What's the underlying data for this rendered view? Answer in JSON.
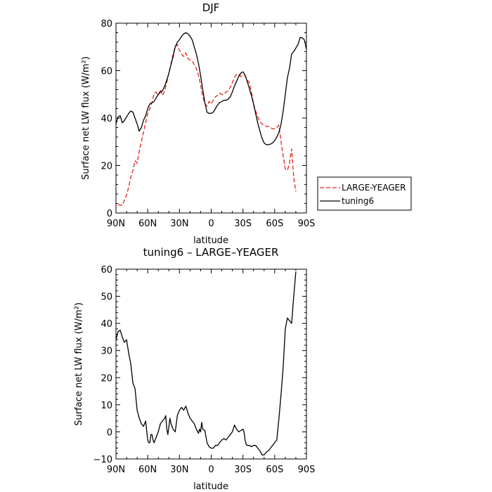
{
  "chart_data": [
    {
      "type": "line",
      "title": "DJF",
      "xlabel": "latitude",
      "ylabel": "Surface net LW flux (W/m²)",
      "xlim": [
        -90,
        90
      ],
      "ylim": [
        0,
        80
      ],
      "x_ticks": [
        -90,
        -60,
        -30,
        0,
        30,
        60,
        90
      ],
      "x_tick_labels": [
        "90N",
        "60N",
        "30N",
        "0",
        "30S",
        "60S",
        "90S"
      ],
      "y_ticks": [
        0,
        20,
        40,
        60,
        80
      ],
      "y_tick_labels": [
        "0",
        "20",
        "40",
        "60",
        "80"
      ],
      "legend_position": "right-outside",
      "series": [
        {
          "name": "LARGE-YEAGER",
          "style": "dashed",
          "color": "#e8211b",
          "x": [
            -88,
            -84,
            -82,
            -80,
            -78,
            -76,
            -74,
            -72,
            -70,
            -68,
            -66,
            -64,
            -62,
            -60,
            -58,
            -56,
            -54,
            -52,
            -50,
            -48,
            -46,
            -44,
            -42,
            -40,
            -38,
            -36,
            -34,
            -32,
            -30,
            -28,
            -26,
            -24,
            -22,
            -20,
            -18,
            -16,
            -14,
            -12,
            -10,
            -8,
            -6,
            -4,
            -2,
            0,
            2,
            4,
            6,
            8,
            10,
            12,
            14,
            16,
            18,
            20,
            22,
            24,
            26,
            28,
            30,
            32,
            34,
            36,
            38,
            40,
            42,
            44,
            46,
            48,
            50,
            52,
            54,
            56,
            58,
            60,
            62,
            64,
            66,
            68,
            70,
            72,
            74,
            76,
            78,
            80
          ],
          "y": [
            3.5,
            3.2,
            5.5,
            7.5,
            11,
            15,
            18,
            22,
            21,
            26,
            30,
            34,
            38,
            42,
            44,
            46.5,
            50.5,
            51,
            49.5,
            52,
            49.5,
            51.5,
            55,
            59,
            63,
            67,
            70,
            71,
            68.5,
            67,
            66,
            67.5,
            65,
            64.5,
            64,
            62.5,
            61,
            58,
            54,
            49,
            46,
            45,
            47,
            46,
            47.5,
            49,
            49.5,
            50.5,
            50,
            50,
            51,
            51.5,
            53,
            55,
            57,
            58.5,
            58.5,
            57.5,
            58,
            58,
            56,
            55,
            51,
            46,
            43,
            40.5,
            38.5,
            37.5,
            37,
            36.5,
            36.5,
            36,
            35.5,
            35.5,
            36,
            37,
            30,
            24,
            18.5,
            18,
            21,
            27,
            15,
            9
          ]
        },
        {
          "name": "tuning6",
          "style": "solid",
          "color": "#000000",
          "x": [
            -90,
            -88,
            -86,
            -84,
            -82,
            -80,
            -78,
            -76,
            -74,
            -72,
            -70,
            -68,
            -66,
            -64,
            -62,
            -60,
            -58,
            -56,
            -54,
            -52,
            -50,
            -48,
            -46,
            -44,
            -42,
            -40,
            -38,
            -36,
            -34,
            -32,
            -30,
            -28,
            -26,
            -24,
            -22,
            -20,
            -18,
            -16,
            -14,
            -12,
            -10,
            -8,
            -6,
            -4,
            -2,
            0,
            2,
            4,
            6,
            8,
            10,
            12,
            14,
            16,
            18,
            20,
            22,
            24,
            26,
            28,
            30,
            32,
            34,
            36,
            38,
            40,
            42,
            44,
            46,
            48,
            50,
            52,
            54,
            56,
            58,
            60,
            62,
            64,
            66,
            68,
            70,
            72,
            74,
            76,
            78,
            80,
            82,
            84,
            86,
            88,
            90
          ],
          "y": [
            37.5,
            40.5,
            41,
            38,
            39,
            40.5,
            42,
            43,
            42.5,
            40,
            37.5,
            34.5,
            36,
            39,
            41,
            44,
            46,
            46.5,
            47,
            48.5,
            50,
            51,
            51.5,
            53.5,
            56,
            59,
            62.5,
            66,
            70,
            72,
            73,
            74.5,
            75.5,
            76,
            75.5,
            74.5,
            73,
            70,
            67,
            63,
            58,
            52,
            46.5,
            42.5,
            42,
            42,
            42.5,
            44,
            45.5,
            46.5,
            47,
            47.5,
            47.5,
            48,
            49,
            51,
            53.5,
            55.5,
            57.5,
            59,
            59.5,
            58,
            55.5,
            52.5,
            49.5,
            46,
            42,
            38,
            34.5,
            31.5,
            29.5,
            28.8,
            28.8,
            29,
            29.5,
            30.5,
            32,
            34,
            37.5,
            43,
            50,
            57,
            61,
            67,
            68,
            69.5,
            71,
            74,
            73.8,
            73,
            69
          ]
        }
      ]
    },
    {
      "type": "line",
      "title": "tuning6 – LARGE–YEAGER",
      "xlabel": "latitude",
      "ylabel": "Surface net LW flux (W/m²)",
      "xlim": [
        -90,
        90
      ],
      "ylim": [
        -10,
        60
      ],
      "x_ticks": [
        -90,
        -60,
        -30,
        0,
        30,
        60,
        90
      ],
      "x_tick_labels": [
        "90N",
        "60N",
        "30N",
        "0",
        "30S",
        "60S",
        "90S"
      ],
      "y_ticks": [
        -10,
        0,
        10,
        20,
        30,
        40,
        50,
        60
      ],
      "y_tick_labels": [
        "−10",
        "0",
        "10",
        "20",
        "30",
        "40",
        "50",
        "60"
      ],
      "series": [
        {
          "style": "solid",
          "color": "#000000",
          "x": [
            -90,
            -88,
            -86,
            -84,
            -82,
            -80,
            -78,
            -76,
            -74,
            -72,
            -70,
            -68,
            -66,
            -64,
            -62,
            -60,
            -59,
            -58,
            -57,
            -56,
            -55,
            -54,
            -52,
            -50,
            -48,
            -46,
            -44,
            -43,
            -42,
            -41,
            -40,
            -39,
            -38,
            -36,
            -34,
            -32,
            -30,
            -28,
            -26,
            -24,
            -22,
            -20,
            -18,
            -16,
            -14,
            -12,
            -11,
            -10,
            -9,
            -8,
            -6,
            -4,
            -2,
            0,
            2,
            4,
            6,
            8,
            10,
            12,
            14,
            16,
            18,
            20,
            22,
            24,
            26,
            28,
            30,
            31,
            32,
            33,
            34,
            36,
            38,
            40,
            42,
            44,
            46,
            48,
            50,
            52,
            54,
            56,
            58,
            60,
            62,
            64,
            66,
            68,
            70,
            72,
            74,
            76,
            78,
            80
          ],
          "y": [
            34,
            37,
            37.5,
            35,
            33,
            34,
            29,
            25,
            18,
            16,
            8,
            5,
            3,
            2,
            4,
            -3,
            -4,
            -4,
            -1,
            -1,
            -3,
            -4,
            -2,
            0,
            3,
            4,
            5,
            6,
            1,
            -1,
            2,
            5,
            3,
            1,
            0,
            6,
            8,
            9,
            8,
            9.5,
            7,
            5,
            4,
            3,
            1,
            -0.5,
            1,
            0,
            3.5,
            1,
            0.5,
            -4,
            -5.5,
            -6,
            -6,
            -5,
            -5,
            -4,
            -3,
            -2.5,
            -3,
            -2,
            -1,
            0,
            2.5,
            1,
            0,
            0.5,
            1,
            0,
            -3,
            -4.5,
            -5,
            -5,
            -5.5,
            -5,
            -5,
            -6,
            -7,
            -8.5,
            -8.5,
            -7.5,
            -7,
            -6,
            -5,
            -4,
            -3,
            5,
            14,
            24,
            38,
            42,
            41,
            40,
            50,
            59
          ]
        }
      ]
    }
  ]
}
